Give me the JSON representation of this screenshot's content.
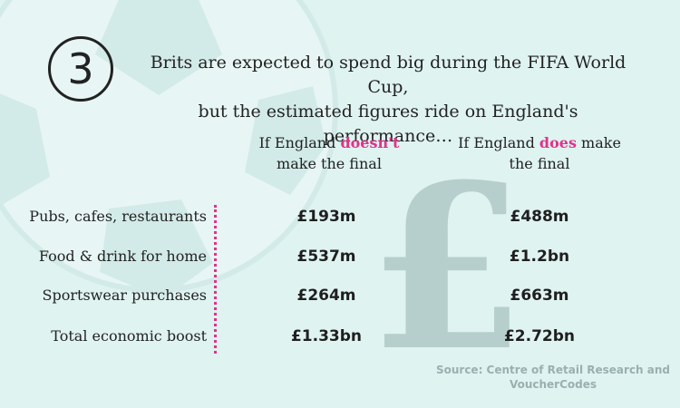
{
  "badge_number": "3",
  "headline": {
    "line1": "Brits are expected to spend big during the FIFA World Cup,",
    "line2": "but the estimated figures ride on England's performance…"
  },
  "columns": {
    "col1": {
      "pre": "If England ",
      "highlight": "doesn't",
      "post": "make the final"
    },
    "col2": {
      "pre": "If England ",
      "highlight": "does",
      "post_same_line": " make",
      "post": "the final"
    }
  },
  "chart_data": {
    "type": "table",
    "columns": [
      "If England doesn't make the final",
      "If England does make the final"
    ],
    "rows": [
      {
        "label": "Pubs, cafes, restaurants",
        "values": [
          "£193m",
          "£488m"
        ]
      },
      {
        "label": "Food & drink for home",
        "values": [
          "£537m",
          "£1.2bn"
        ]
      },
      {
        "label": "Sportswear purchases",
        "values": [
          "£264m",
          "£663m"
        ]
      },
      {
        "label": "Total economic boost",
        "values": [
          "£1.33bn",
          "£2.72bn"
        ]
      }
    ]
  },
  "source": {
    "line1": "Source: Centre of Retail Research and",
    "line2": "VoucherCodes"
  },
  "colors": {
    "background": "#dff3f1",
    "highlight": "#e0338a",
    "watermark": "#b6cfcc"
  },
  "icons": {
    "background": "football-icon",
    "watermark": "pound-sign-icon"
  }
}
